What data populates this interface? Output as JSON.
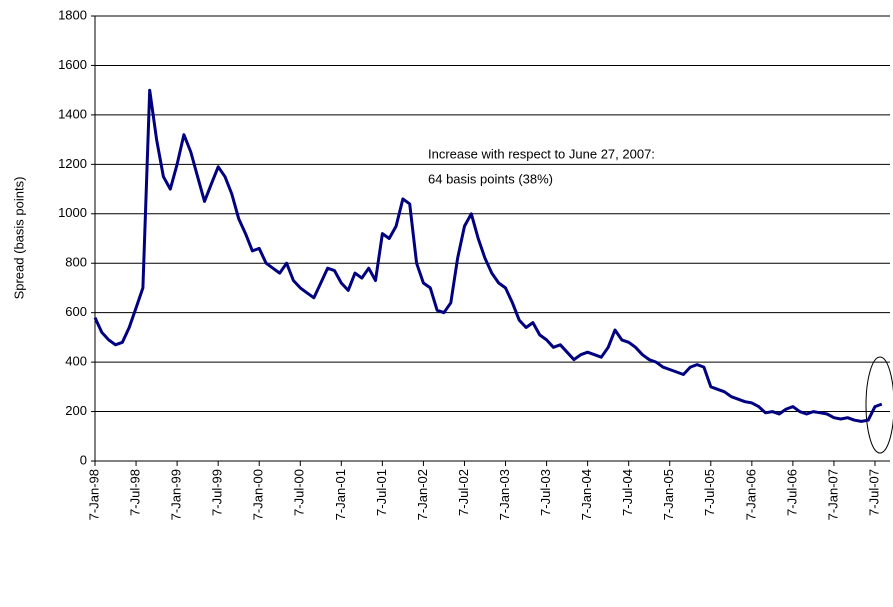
{
  "chart_data": {
    "type": "line",
    "y_label": "Spread (basis points)",
    "annotations": [
      "Increase with respect to June 27, 2007:",
      "64 basis points (38%)"
    ],
    "categories": [
      "7-Jan-98",
      null,
      null,
      null,
      null,
      null,
      "7-Jul-98",
      null,
      null,
      null,
      null,
      null,
      "7-Jan-99",
      null,
      null,
      null,
      null,
      null,
      "7-Jul-99",
      null,
      null,
      null,
      null,
      null,
      "7-Jan-00",
      null,
      null,
      null,
      null,
      null,
      "7-Jul-00",
      null,
      null,
      null,
      null,
      null,
      "7-Jan-01",
      null,
      null,
      null,
      null,
      null,
      "7-Jul-01",
      null,
      null,
      null,
      null,
      null,
      "7-Jan-02",
      null,
      null,
      null,
      null,
      null,
      "7-Jul-02",
      null,
      null,
      null,
      null,
      null,
      "7-Jan-03",
      null,
      null,
      null,
      null,
      null,
      "7-Jul-03",
      null,
      null,
      null,
      null,
      null,
      "7-Jan-04",
      null,
      null,
      null,
      null,
      null,
      "7-Jul-04",
      null,
      null,
      null,
      null,
      null,
      "7-Jan-05",
      null,
      null,
      null,
      null,
      null,
      "7-Jul-05",
      null,
      null,
      null,
      null,
      null,
      "7-Jan-06",
      null,
      null,
      null,
      null,
      null,
      "7-Jul-06",
      null,
      null,
      null,
      null,
      null,
      "7-Jan-07",
      null,
      null,
      null,
      null,
      null,
      "7-Jul-07",
      null
    ],
    "series": [
      {
        "color": "#000080",
        "values": [
          580,
          520,
          490,
          470,
          480,
          540,
          620,
          700,
          1500,
          1300,
          1150,
          1100,
          1200,
          1320,
          1250,
          1150,
          1050,
          1120,
          1190,
          1150,
          1080,
          980,
          920,
          850,
          860,
          800,
          780,
          760,
          800,
          730,
          700,
          680,
          660,
          720,
          780,
          770,
          720,
          690,
          760,
          740,
          780,
          730,
          920,
          900,
          950,
          1060,
          1040,
          800,
          720,
          700,
          610,
          600,
          640,
          820,
          950,
          1000,
          900,
          820,
          760,
          720,
          700,
          640,
          570,
          540,
          560,
          510,
          490,
          460,
          470,
          440,
          410,
          430,
          440,
          430,
          420,
          460,
          530,
          490,
          480,
          460,
          430,
          410,
          400,
          380,
          370,
          360,
          350,
          380,
          390,
          380,
          300,
          290,
          280,
          260,
          250,
          240,
          235,
          220,
          195,
          200,
          190,
          210,
          220,
          200,
          190,
          200,
          195,
          190,
          175,
          170,
          175,
          165,
          160,
          165,
          220,
          230
        ]
      }
    ],
    "ylim": [
      0,
      1800
    ],
    "yticks": [
      0,
      200,
      400,
      600,
      800,
      1000,
      1200,
      1400,
      1600,
      1800
    ],
    "grid": true
  }
}
